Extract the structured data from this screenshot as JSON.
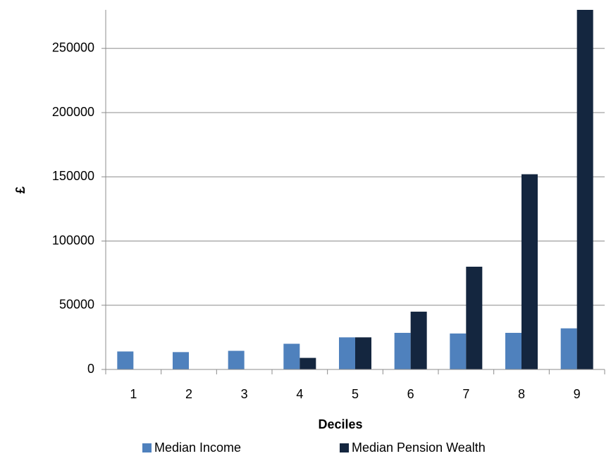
{
  "chart_data": {
    "type": "bar",
    "x_label": "Deciles",
    "y_label": "£",
    "categories": [
      "1",
      "2",
      "3",
      "4",
      "5",
      "6",
      "7",
      "8",
      "9"
    ],
    "series": [
      {
        "name": "Median Income",
        "color": "#4f81bd",
        "values": [
          14000,
          13500,
          14500,
          20000,
          25000,
          28500,
          28000,
          28500,
          32000
        ]
      },
      {
        "name": "Median Pension Wealth",
        "color": "#14263f",
        "values": [
          0,
          0,
          0,
          9000,
          25000,
          45000,
          80000,
          152000,
          280000
        ]
      }
    ],
    "ylim": [
      0,
      280000
    ],
    "yticks": [
      0,
      50000,
      100000,
      150000,
      200000,
      250000
    ],
    "grid": true
  }
}
